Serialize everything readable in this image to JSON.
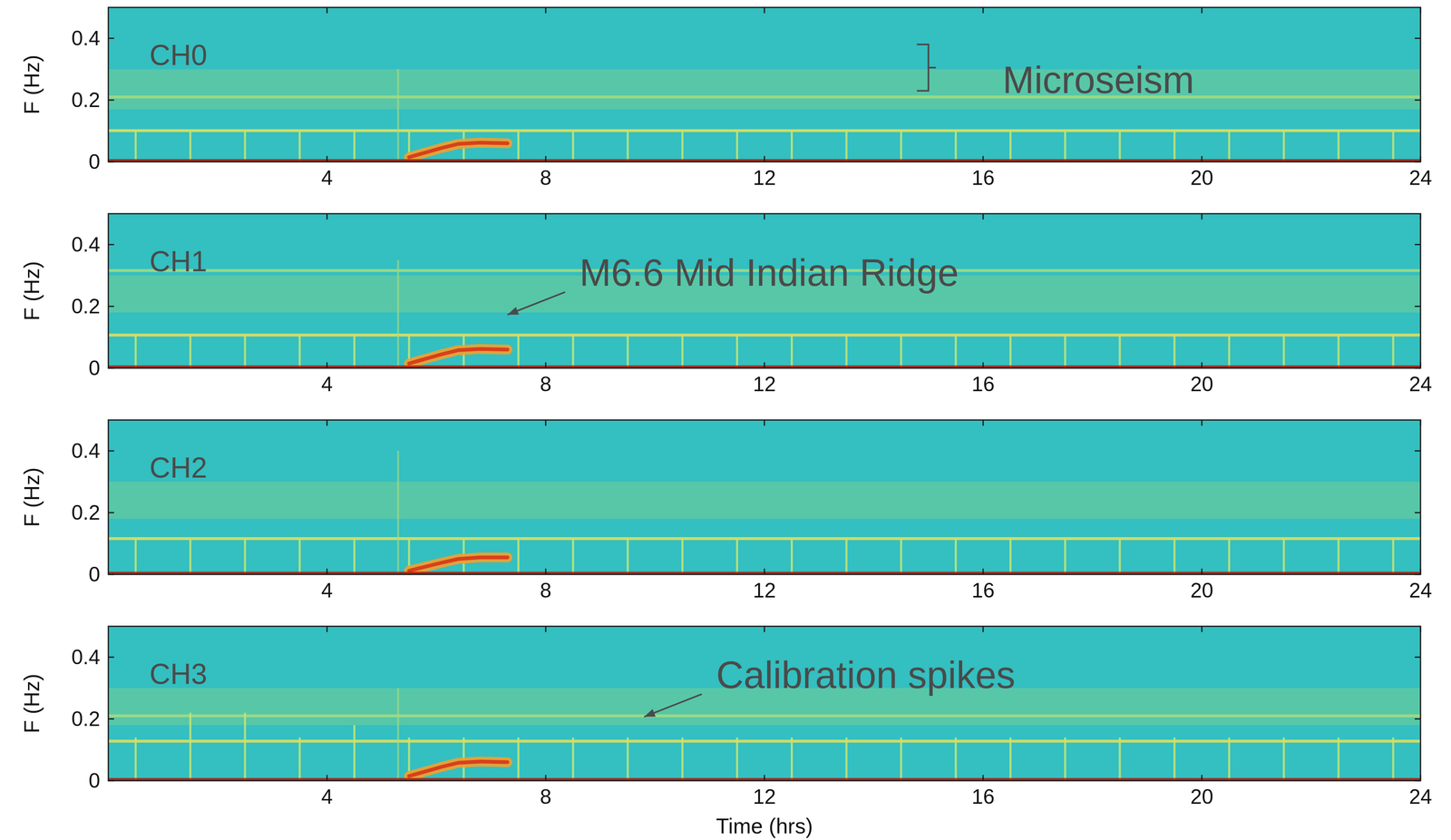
{
  "chart_data": [
    {
      "type": "spectrogram",
      "title": "CH0",
      "y_label": "F (Hz)",
      "color": "#34bfc0",
      "xlim": [
        0,
        24
      ],
      "xticks": [
        4,
        8,
        12,
        16,
        20,
        24
      ],
      "ylim": [
        0,
        0.5
      ],
      "yticks": [
        0,
        0.2,
        0.4
      ],
      "series": [
        {
          "type": "band",
          "values": [
            0.17,
            0.3
          ],
          "color": "#9ad87a"
        },
        {
          "type": "hline",
          "values": [
            0.21
          ],
          "color": "#a8dc80"
        },
        {
          "type": "hline",
          "values": [
            0.101
          ],
          "color": "#e8e25a"
        },
        {
          "type": "vline",
          "x": [
            5.3
          ],
          "values": [
            0.3
          ],
          "color": "#a8dc80"
        },
        {
          "type": "spikes",
          "x": [
            0.5,
            1.5,
            2.5,
            3.5,
            4.5,
            5.5,
            6.5,
            7.5,
            8.5,
            9.5,
            10.5,
            11.5,
            12.5,
            13.5,
            14.5,
            15.5,
            16.5,
            17.5,
            18.5,
            19.5,
            20.5,
            21.5,
            22.5,
            23.5
          ],
          "values": [
            0.1,
            0.1,
            0.1,
            0.1,
            0.1,
            0.1,
            0.1,
            0.1,
            0.1,
            0.1,
            0.1,
            0.1,
            0.1,
            0.1,
            0.1,
            0.1,
            0.1,
            0.1,
            0.1,
            0.1,
            0.1,
            0.1,
            0.1,
            0.1
          ],
          "color": "#c6e676"
        },
        {
          "type": "line",
          "x": [
            5.5,
            5.8,
            6.1,
            6.4,
            6.8,
            7.3
          ],
          "values": [
            0.015,
            0.03,
            0.045,
            0.058,
            0.062,
            0.06
          ],
          "color": "#f0a030"
        },
        {
          "type": "hline",
          "values": [
            0.004
          ],
          "color": "#b01808"
        }
      ],
      "annotations": [
        {
          "type": "bracket",
          "text": "Microseism",
          "x": 15,
          "y": [
            0.23,
            0.38
          ]
        }
      ]
    },
    {
      "type": "spectrogram",
      "title": "CH1",
      "y_label": "F (Hz)",
      "color": "#34bfc0",
      "xlim": [
        0,
        24
      ],
      "xticks": [
        4,
        8,
        12,
        16,
        20,
        24
      ],
      "ylim": [
        0,
        0.5
      ],
      "yticks": [
        0,
        0.2,
        0.4
      ],
      "series": [
        {
          "type": "band",
          "values": [
            0.18,
            0.3
          ],
          "color": "#9ad87a"
        },
        {
          "type": "hline",
          "values": [
            0.316
          ],
          "color": "#a8dc80"
        },
        {
          "type": "hline",
          "values": [
            0.107
          ],
          "color": "#e8e25a"
        },
        {
          "type": "vline",
          "x": [
            5.3
          ],
          "values": [
            0.35
          ],
          "color": "#a8dc80"
        },
        {
          "type": "spikes",
          "x": [
            0.5,
            1.5,
            2.5,
            3.5,
            4.5,
            5.5,
            6.5,
            7.5,
            8.5,
            9.5,
            10.5,
            11.5,
            12.5,
            13.5,
            14.5,
            15.5,
            16.5,
            17.5,
            18.5,
            19.5,
            20.5,
            21.5,
            22.5,
            23.5
          ],
          "values": [
            0.105,
            0.105,
            0.105,
            0.105,
            0.105,
            0.105,
            0.105,
            0.105,
            0.105,
            0.105,
            0.105,
            0.105,
            0.105,
            0.105,
            0.105,
            0.105,
            0.105,
            0.105,
            0.105,
            0.105,
            0.105,
            0.105,
            0.105,
            0.105
          ],
          "color": "#c6e676"
        },
        {
          "type": "line",
          "x": [
            5.5,
            5.8,
            6.1,
            6.4,
            6.8,
            7.3
          ],
          "values": [
            0.015,
            0.03,
            0.045,
            0.058,
            0.062,
            0.06
          ],
          "color": "#f0a030"
        },
        {
          "type": "hline",
          "values": [
            0.004
          ],
          "color": "#b01808"
        }
      ],
      "annotations": [
        {
          "type": "arrow",
          "text": "M6.6 Mid Indian Ridge",
          "x": 7.3,
          "y": 0.173
        }
      ]
    },
    {
      "type": "spectrogram",
      "title": "CH2",
      "y_label": "F (Hz)",
      "color": "#34bfc0",
      "xlim": [
        0,
        24
      ],
      "xticks": [
        4,
        8,
        12,
        16,
        20,
        24
      ],
      "ylim": [
        0,
        0.5
      ],
      "yticks": [
        0,
        0.2,
        0.4
      ],
      "series": [
        {
          "type": "band",
          "values": [
            0.18,
            0.3
          ],
          "color": "#9ad87a"
        },
        {
          "type": "hline",
          "values": [
            0.116
          ],
          "color": "#e8e25a"
        },
        {
          "type": "vline",
          "x": [
            5.3
          ],
          "values": [
            0.4
          ],
          "color": "#a8dc80"
        },
        {
          "type": "spikes",
          "x": [
            0.5,
            1.5,
            2.5,
            3.5,
            4.5,
            5.5,
            6.5,
            7.5,
            8.5,
            9.5,
            10.5,
            11.5,
            12.5,
            13.5,
            14.5,
            15.5,
            16.5,
            17.5,
            18.5,
            19.5,
            20.5,
            21.5,
            22.5,
            23.5
          ],
          "values": [
            0.115,
            0.115,
            0.115,
            0.115,
            0.115,
            0.115,
            0.115,
            0.115,
            0.115,
            0.115,
            0.115,
            0.115,
            0.115,
            0.115,
            0.115,
            0.115,
            0.115,
            0.115,
            0.115,
            0.115,
            0.115,
            0.115,
            0.115,
            0.115
          ],
          "color": "#c6e676"
        },
        {
          "type": "line",
          "x": [
            5.5,
            5.8,
            6.1,
            6.4,
            6.8,
            7.3
          ],
          "values": [
            0.012,
            0.025,
            0.038,
            0.05,
            0.055,
            0.055
          ],
          "color": "#f0a030"
        },
        {
          "type": "hline",
          "values": [
            0.004
          ],
          "color": "#b01808"
        }
      ]
    },
    {
      "type": "spectrogram",
      "title": "CH3",
      "y_label": "F (Hz)",
      "x_label": "Time (hrs)",
      "color": "#34bfc0",
      "xlim": [
        0,
        24
      ],
      "xticks": [
        4,
        8,
        12,
        16,
        20,
        24
      ],
      "ylim": [
        0,
        0.5
      ],
      "yticks": [
        0,
        0.2,
        0.4
      ],
      "series": [
        {
          "type": "band",
          "values": [
            0.18,
            0.3
          ],
          "color": "#9ad87a"
        },
        {
          "type": "hline",
          "values": [
            0.21
          ],
          "color": "#a8dc80"
        },
        {
          "type": "hline",
          "values": [
            0.128
          ],
          "color": "#e8e25a"
        },
        {
          "type": "vline",
          "x": [
            5.3
          ],
          "values": [
            0.3
          ],
          "color": "#a8dc80"
        },
        {
          "type": "spikes",
          "x": [
            0.5,
            1.5,
            2.5,
            3.5,
            4.5,
            5.5,
            6.5,
            7.5,
            8.5,
            9.5,
            10.5,
            11.5,
            12.5,
            13.5,
            14.5,
            15.5,
            16.5,
            17.5,
            18.5,
            19.5,
            20.5,
            21.5,
            22.5,
            23.5
          ],
          "values": [
            0.14,
            0.22,
            0.22,
            0.14,
            0.18,
            0.14,
            0.14,
            0.14,
            0.14,
            0.14,
            0.14,
            0.14,
            0.14,
            0.14,
            0.14,
            0.14,
            0.14,
            0.14,
            0.14,
            0.14,
            0.14,
            0.14,
            0.14,
            0.14
          ],
          "color": "#c6e676"
        },
        {
          "type": "line",
          "x": [
            5.5,
            5.8,
            6.1,
            6.4,
            6.8,
            7.3
          ],
          "values": [
            0.015,
            0.03,
            0.045,
            0.058,
            0.062,
            0.06
          ],
          "color": "#f0a030"
        },
        {
          "type": "hline",
          "values": [
            0.004
          ],
          "color": "#b01808"
        }
      ],
      "annotations": [
        {
          "type": "arrow",
          "text": "Calibration spikes",
          "x": 9.8,
          "y": 0.207
        }
      ]
    }
  ]
}
